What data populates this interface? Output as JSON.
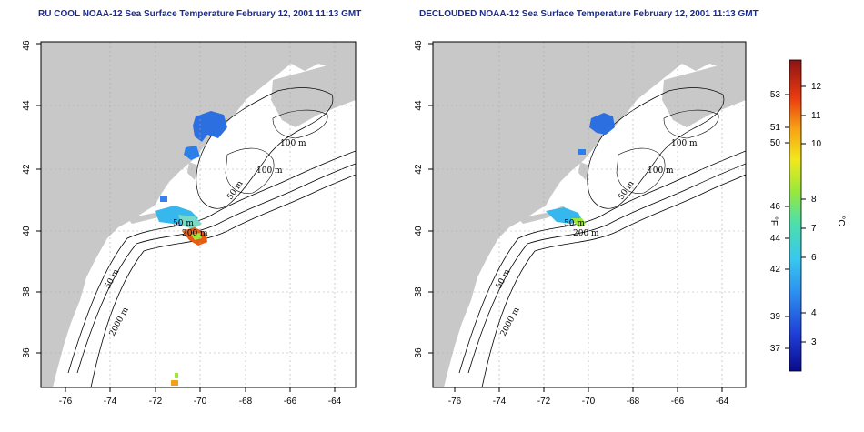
{
  "maps": [
    {
      "title": "RU COOL NOAA-12 Sea Surface Temperature February 12, 2001 11:13 GMT",
      "x_ticks": [
        "-76",
        "-74",
        "-72",
        "-70",
        "-68",
        "-66",
        "-64"
      ],
      "y_ticks": [
        "36",
        "38",
        "40",
        "42",
        "44",
        "46"
      ],
      "contour_labels": [
        "100 m",
        "100 m",
        "50 m",
        "50 m",
        "200 m",
        "50 m",
        "2000 m"
      ]
    },
    {
      "title": "DECLOUDED NOAA-12 Sea Surface Temperature February 12, 2001 11:13 GMT",
      "x_ticks": [
        "-76",
        "-74",
        "-72",
        "-70",
        "-68",
        "-66",
        "-64"
      ],
      "y_ticks": [
        "36",
        "38",
        "40",
        "42",
        "44",
        "46"
      ],
      "contour_labels": [
        "100 m",
        "100 m",
        "50 m",
        "50 m",
        "200 m",
        "50 m",
        "2000 m"
      ]
    }
  ],
  "colorbar": {
    "f_label": "°F",
    "c_label": "°C",
    "f_ticks": [
      "53",
      "51",
      "50",
      "46",
      "44",
      "42",
      "39",
      "37"
    ],
    "c_ticks": [
      "12",
      "11",
      "10",
      "8",
      "7",
      "6",
      "4",
      "3"
    ],
    "colors": [
      "#0a0a8c",
      "#1f3fd8",
      "#2c8ef0",
      "#36c9ee",
      "#4ee0a8",
      "#9be83a",
      "#f2e81c",
      "#f8a114",
      "#ea3a10",
      "#8c1414"
    ]
  },
  "map_colors": {
    "land": "#c8c8c8",
    "ocean": "#ffffff"
  }
}
